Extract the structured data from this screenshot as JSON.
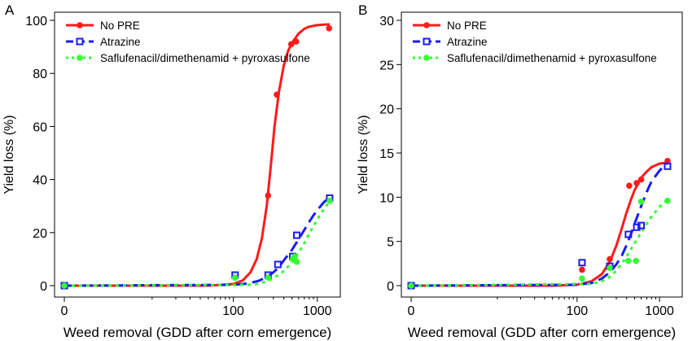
{
  "chart_data": [
    {
      "panel_label": "A",
      "type": "line",
      "x_scale": "log1p",
      "xlabel": "Weed removal (GDD after corn emergence)",
      "ylabel": "Yield loss (%)",
      "xlim": [
        0,
        1500
      ],
      "ylim": [
        0,
        100
      ],
      "x_ticks": [
        0,
        100,
        1000
      ],
      "x_tick_labels": [
        "0",
        "100",
        "1000"
      ],
      "y_ticks": [
        0,
        20,
        40,
        60,
        80,
        100
      ],
      "y_tick_labels": [
        "0",
        "20",
        "40",
        "60",
        "80",
        "100"
      ],
      "grid": false,
      "legend_position": "top-left",
      "series": [
        {
          "name": "No PRE",
          "color": "#ff1a1a",
          "line_style": "solid",
          "marker": "filled-circle",
          "points": [
            [
              0,
              0
            ],
            [
              105,
              3
            ],
            [
              260,
              34
            ],
            [
              330,
              72
            ],
            [
              490,
              91
            ],
            [
              560,
              92
            ],
            [
              1380,
              97
            ]
          ],
          "fit": [
            [
              0,
              0
            ],
            [
              50,
              0
            ],
            [
              100,
              0.6
            ],
            [
              130,
              2
            ],
            [
              160,
              5
            ],
            [
              190,
              10
            ],
            [
              220,
              18
            ],
            [
              250,
              30
            ],
            [
              280,
              45
            ],
            [
              310,
              60
            ],
            [
              350,
              73
            ],
            [
              400,
              83
            ],
            [
              450,
              88.5
            ],
            [
              500,
              91.5
            ],
            [
              600,
              95
            ],
            [
              700,
              96.8
            ],
            [
              800,
              97.6
            ],
            [
              1000,
              98.2
            ],
            [
              1200,
              98.4
            ],
            [
              1400,
              98.5
            ]
          ]
        },
        {
          "name": "Atrazine",
          "color": "#1a1aff",
          "line_style": "dashed",
          "marker": "open-square",
          "points": [
            [
              0,
              0
            ],
            [
              105,
              4
            ],
            [
              260,
              4
            ],
            [
              340,
              8
            ],
            [
              510,
              11
            ],
            [
              570,
              19
            ],
            [
              1400,
              33
            ]
          ],
          "fit": [
            [
              0,
              0
            ],
            [
              100,
              0.3
            ],
            [
              150,
              0.8
            ],
            [
              200,
              1.8
            ],
            [
              250,
              3.2
            ],
            [
              300,
              5
            ],
            [
              350,
              7
            ],
            [
              400,
              9.5
            ],
            [
              500,
              13.5
            ],
            [
              600,
              17.5
            ],
            [
              700,
              21
            ],
            [
              800,
              24
            ],
            [
              900,
              26.5
            ],
            [
              1000,
              28.5
            ],
            [
              1200,
              31.5
            ],
            [
              1400,
              33.3
            ]
          ]
        },
        {
          "name": "Saflufenacil/dimethenamid + pyroxasulfone",
          "color": "#33ff33",
          "line_style": "dotted",
          "marker": "filled-circle",
          "points": [
            [
              0,
              0
            ],
            [
              105,
              3
            ],
            [
              260,
              3
            ],
            [
              510,
              10
            ],
            [
              540,
              11
            ],
            [
              570,
              9
            ],
            [
              1400,
              32
            ]
          ],
          "fit": [
            [
              0,
              0
            ],
            [
              150,
              0.3
            ],
            [
              200,
              0.8
            ],
            [
              250,
              1.6
            ],
            [
              300,
              2.8
            ],
            [
              400,
              5.5
            ],
            [
              500,
              8.8
            ],
            [
              600,
              12.5
            ],
            [
              700,
              16
            ],
            [
              800,
              19.5
            ],
            [
              900,
              22.5
            ],
            [
              1000,
              25
            ],
            [
              1200,
              29
            ],
            [
              1400,
              31.7
            ]
          ]
        }
      ]
    },
    {
      "panel_label": "B",
      "type": "line",
      "x_scale": "log1p",
      "xlabel": "Weed removal (GDD after corn emergence)",
      "ylabel": "Yield loss (%)",
      "xlim": [
        0,
        1500
      ],
      "ylim": [
        0,
        30
      ],
      "x_ticks": [
        0,
        100,
        1000
      ],
      "x_tick_labels": [
        "0",
        "100",
        "1000"
      ],
      "y_ticks": [
        0,
        5,
        10,
        15,
        20,
        25,
        30
      ],
      "y_tick_labels": [
        "0",
        "5",
        "10",
        "15",
        "20",
        "25",
        "30"
      ],
      "grid": false,
      "legend_position": "top-left",
      "series": [
        {
          "name": "No PRE",
          "color": "#ff1a1a",
          "line_style": "solid",
          "marker": "filled-circle",
          "points": [
            [
              0,
              0
            ],
            [
              115,
              1.8
            ],
            [
              250,
              3
            ],
            [
              430,
              11.3
            ],
            [
              530,
              11.6
            ],
            [
              600,
              12
            ],
            [
              1250,
              14.1
            ]
          ],
          "fit": [
            [
              0,
              0
            ],
            [
              50,
              0
            ],
            [
              100,
              0.1
            ],
            [
              150,
              0.5
            ],
            [
              200,
              1.3
            ],
            [
              250,
              2.7
            ],
            [
              300,
              4.5
            ],
            [
              350,
              6.5
            ],
            [
              400,
              8.3
            ],
            [
              450,
              9.7
            ],
            [
              500,
              10.8
            ],
            [
              600,
              12.2
            ],
            [
              700,
              12.9
            ],
            [
              800,
              13.4
            ],
            [
              1000,
              13.8
            ],
            [
              1250,
              13.9
            ]
          ]
        },
        {
          "name": "Atrazine",
          "color": "#1a1aff",
          "line_style": "dashed",
          "marker": "open-square",
          "points": [
            [
              0,
              0
            ],
            [
              115,
              2.6
            ],
            [
              250,
              2.2
            ],
            [
              420,
              5.8
            ],
            [
              530,
              6.6
            ],
            [
              600,
              6.8
            ],
            [
              1250,
              13.5
            ]
          ],
          "fit": [
            [
              0,
              0
            ],
            [
              100,
              0.1
            ],
            [
              150,
              0.3
            ],
            [
              200,
              0.8
            ],
            [
              250,
              1.5
            ],
            [
              300,
              2.4
            ],
            [
              350,
              3.4
            ],
            [
              400,
              4.6
            ],
            [
              450,
              5.8
            ],
            [
              500,
              7
            ],
            [
              600,
              9
            ],
            [
              700,
              10.6
            ],
            [
              800,
              11.8
            ],
            [
              1000,
              13
            ],
            [
              1250,
              13.9
            ]
          ]
        },
        {
          "name": "Saflufenacil/dimethenamid + pyroxasulfone",
          "color": "#33ff33",
          "line_style": "dotted",
          "marker": "filled-circle",
          "points": [
            [
              0,
              0
            ],
            [
              115,
              0.8
            ],
            [
              250,
              2
            ],
            [
              420,
              2.8
            ],
            [
              520,
              2.8
            ],
            [
              600,
              9.5
            ],
            [
              1250,
              9.6
            ]
          ],
          "fit": [
            [
              0,
              0
            ],
            [
              150,
              0.2
            ],
            [
              200,
              0.5
            ],
            [
              250,
              1
            ],
            [
              300,
              1.7
            ],
            [
              350,
              2.5
            ],
            [
              400,
              3.3
            ],
            [
              500,
              4.8
            ],
            [
              600,
              6
            ],
            [
              700,
              7
            ],
            [
              800,
              7.8
            ],
            [
              1000,
              8.9
            ],
            [
              1250,
              9.7
            ]
          ]
        }
      ]
    }
  ]
}
